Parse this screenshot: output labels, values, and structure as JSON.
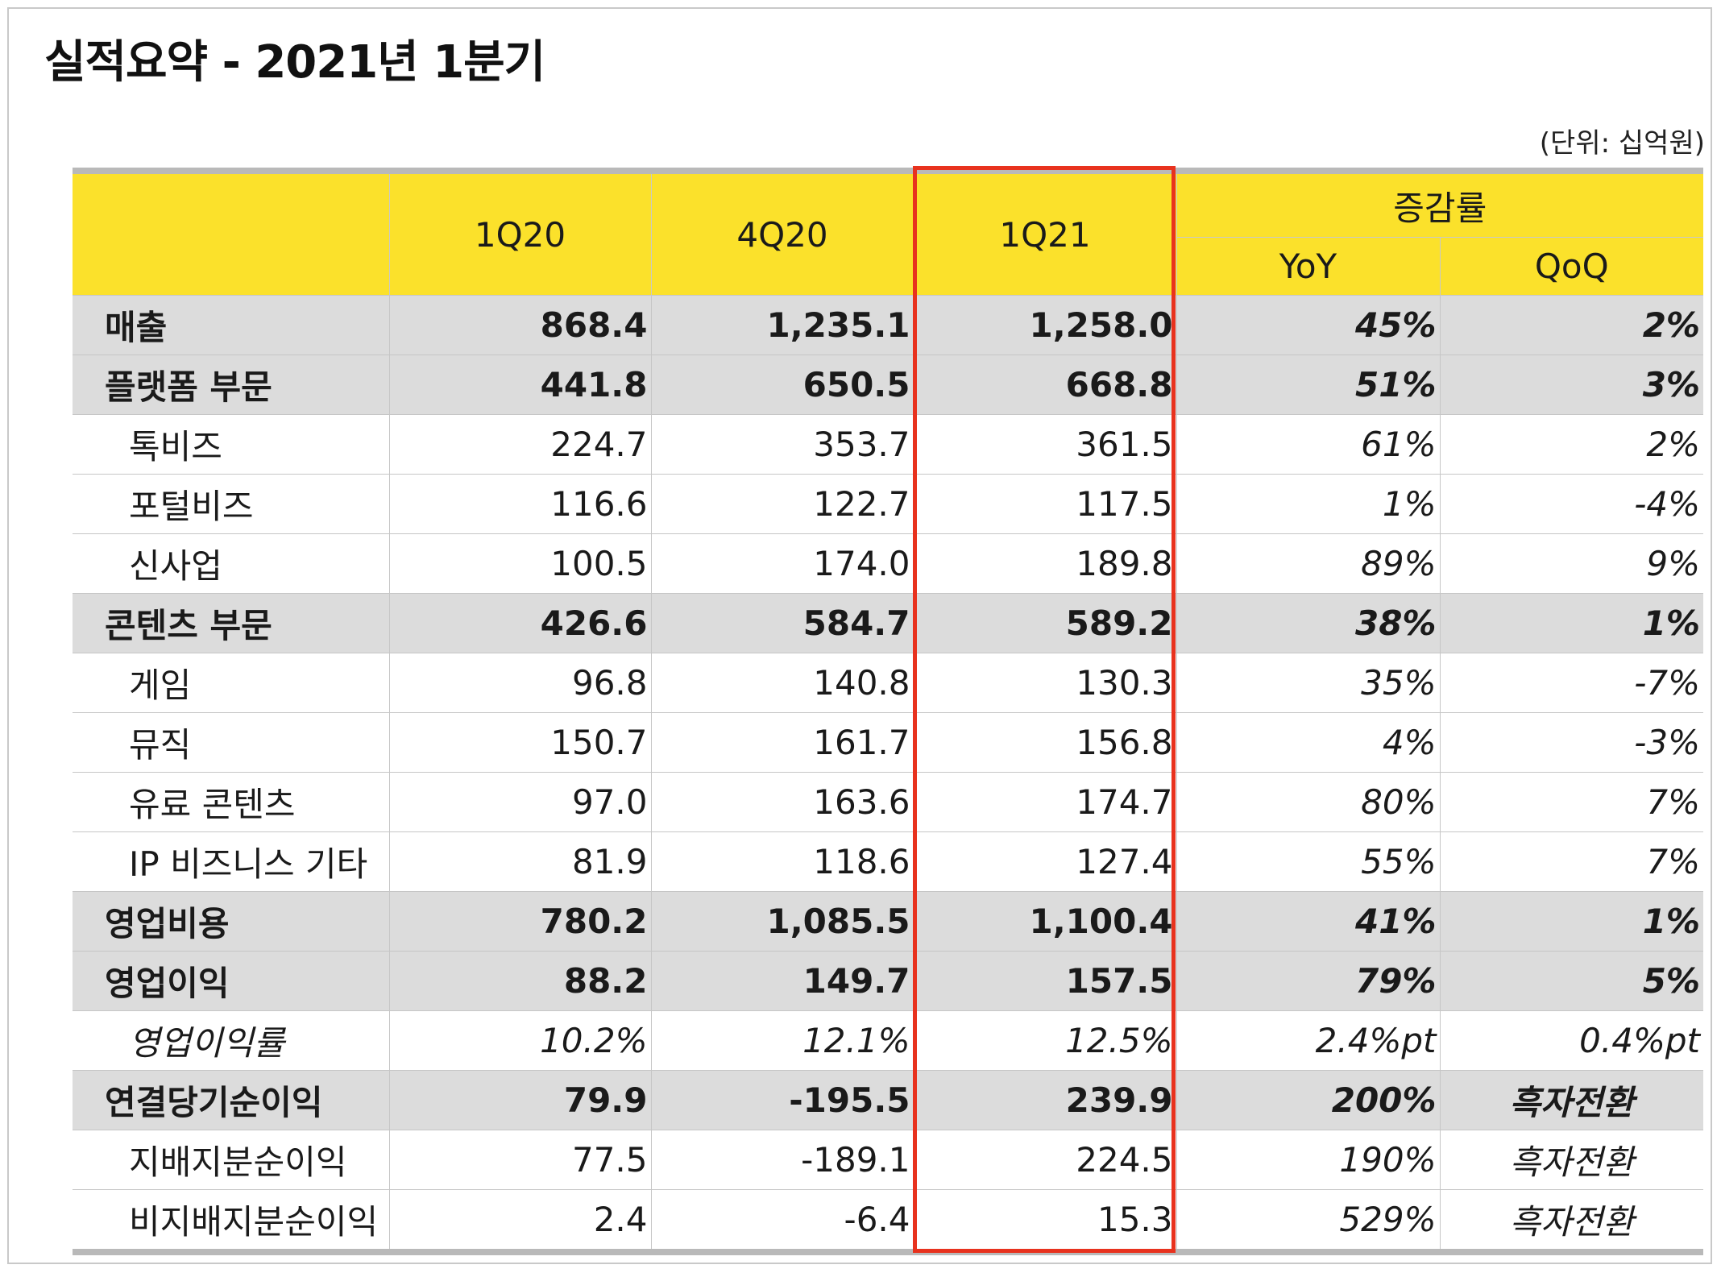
{
  "title": "실적요약 - 2021년 1분기",
  "unit": "(단위: 십억원)",
  "header": {
    "periods": [
      "1Q20",
      "4Q20",
      "1Q21"
    ],
    "change_group": "증감률",
    "yoy": "YoY",
    "qoq": "QoQ"
  },
  "rows": [
    {
      "label": "매출",
      "q1_20": "868.4",
      "q4_20": "1,235.1",
      "q1_21": "1,258.0",
      "yoy": "45%",
      "qoq": "2%"
    },
    {
      "label": "플랫폼 부문",
      "q1_20": "441.8",
      "q4_20": "650.5",
      "q1_21": "668.8",
      "yoy": "51%",
      "qoq": "3%"
    },
    {
      "label": "톡비즈",
      "q1_20": "224.7",
      "q4_20": "353.7",
      "q1_21": "361.5",
      "yoy": "61%",
      "qoq": "2%"
    },
    {
      "label": "포털비즈",
      "q1_20": "116.6",
      "q4_20": "122.7",
      "q1_21": "117.5",
      "yoy": "1%",
      "qoq": "-4%"
    },
    {
      "label": "신사업",
      "q1_20": "100.5",
      "q4_20": "174.0",
      "q1_21": "189.8",
      "yoy": "89%",
      "qoq": "9%"
    },
    {
      "label": "콘텐츠 부문",
      "q1_20": "426.6",
      "q4_20": "584.7",
      "q1_21": "589.2",
      "yoy": "38%",
      "qoq": "1%"
    },
    {
      "label": "게임",
      "q1_20": "96.8",
      "q4_20": "140.8",
      "q1_21": "130.3",
      "yoy": "35%",
      "qoq": "-7%"
    },
    {
      "label": "뮤직",
      "q1_20": "150.7",
      "q4_20": "161.7",
      "q1_21": "156.8",
      "yoy": "4%",
      "qoq": "-3%"
    },
    {
      "label": "유료 콘텐츠",
      "q1_20": "97.0",
      "q4_20": "163.6",
      "q1_21": "174.7",
      "yoy": "80%",
      "qoq": "7%"
    },
    {
      "label": "IP 비즈니스 기타",
      "q1_20": "81.9",
      "q4_20": "118.6",
      "q1_21": "127.4",
      "yoy": "55%",
      "qoq": "7%"
    },
    {
      "label": "영업비용",
      "q1_20": "780.2",
      "q4_20": "1,085.5",
      "q1_21": "1,100.4",
      "yoy": "41%",
      "qoq": "1%"
    },
    {
      "label": "영업이익",
      "q1_20": "88.2",
      "q4_20": "149.7",
      "q1_21": "157.5",
      "yoy": "79%",
      "qoq": "5%"
    },
    {
      "label": "영업이익률",
      "q1_20": "10.2%",
      "q4_20": "12.1%",
      "q1_21": "12.5%",
      "yoy": "2.4%pt",
      "qoq": "0.4%pt"
    },
    {
      "label": "연결당기순이익",
      "q1_20": "79.9",
      "q4_20": "-195.5",
      "q1_21": "239.9",
      "yoy": "200%",
      "qoq": "흑자전환"
    },
    {
      "label": "지배지분순이익",
      "q1_20": "77.5",
      "q4_20": "-189.1",
      "q1_21": "224.5",
      "yoy": "190%",
      "qoq": "흑자전환"
    },
    {
      "label": "비지배지분순이익",
      "q1_20": "2.4",
      "q4_20": "-6.4",
      "q1_21": "15.3",
      "yoy": "529%",
      "qoq": "흑자전환"
    }
  ],
  "highlight_color": "#e8321e",
  "header_color": "#fbe12b"
}
